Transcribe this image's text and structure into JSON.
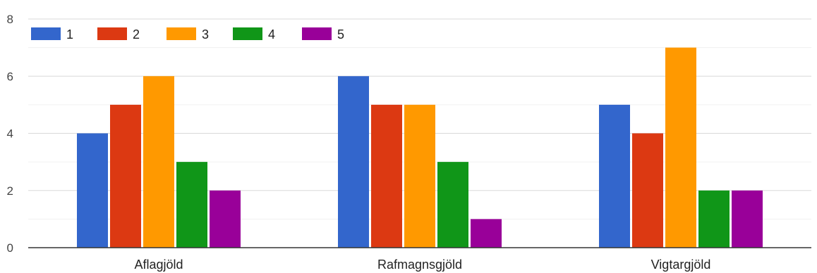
{
  "chart_data": {
    "type": "bar",
    "categories": [
      "Aflagjöld",
      "Rafmagnsgjöld",
      "Vigtargjöld"
    ],
    "series": [
      {
        "name": "1",
        "color": "#3366cc",
        "values": [
          4,
          6,
          5
        ]
      },
      {
        "name": "2",
        "color": "#dc3912",
        "values": [
          5,
          5,
          4
        ]
      },
      {
        "name": "3",
        "color": "#ff9900",
        "values": [
          6,
          5,
          7
        ]
      },
      {
        "name": "4",
        "color": "#109618",
        "values": [
          3,
          3,
          2
        ]
      },
      {
        "name": "5",
        "color": "#990099",
        "values": [
          2,
          1,
          2
        ]
      }
    ],
    "yticks": [
      0,
      2,
      4,
      6,
      8
    ],
    "ylim": [
      0,
      8
    ],
    "legend": "top-left",
    "grid": true
  }
}
